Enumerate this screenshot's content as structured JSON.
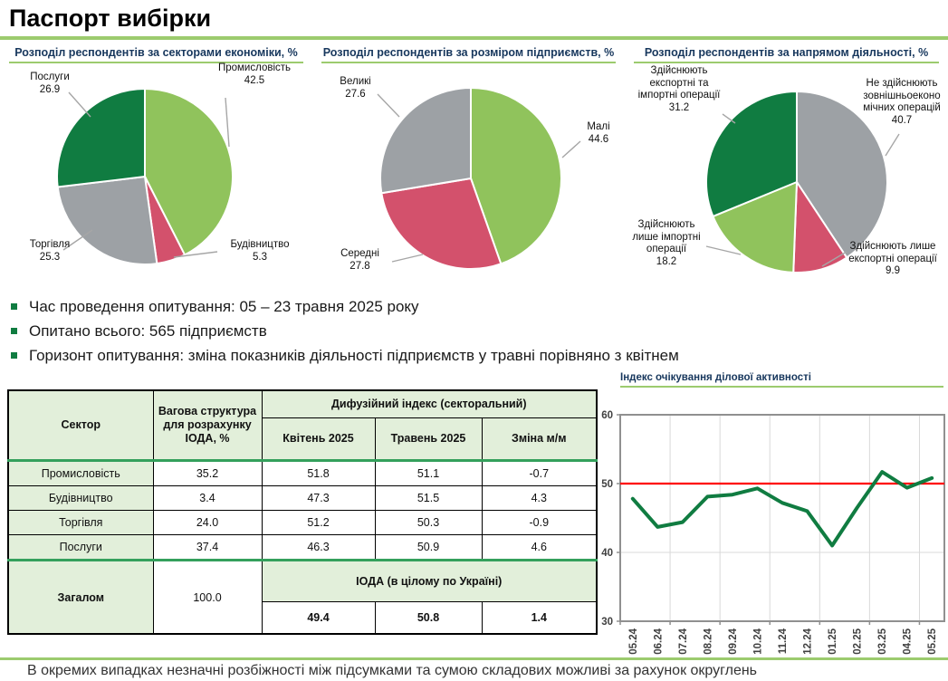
{
  "page": {
    "title": "Паспорт вибірки",
    "footer": "В окремих випадках незначні розбіжності між підсумками та сумою складових можливі за рахунок округлень"
  },
  "bullets": [
    "Час проведення опитування: 05 – 23 травня 2025 року",
    "Опитано всього: 565 підприємств",
    "Горизонт опитування: зміна показників діяльності підприємств у травні порівняно з квітнем"
  ],
  "colors": {
    "light_green": "#90c35c",
    "dark_green": "#107c41",
    "gray": "#9da1a5",
    "red": "#d3516c",
    "accent_green_line": "#34a05c",
    "page_underline": "#9ccb6e",
    "table_header_bg": "#e2efda",
    "ref_line_red": "#ff0000"
  },
  "chart_data": [
    {
      "type": "pie",
      "title": "Розподіл респондентів за секторами економіки, %",
      "labels": [
        "Промисловість",
        "Будівництво",
        "Торгівля",
        "Послуги"
      ],
      "values": [
        42.5,
        5.3,
        25.3,
        26.9
      ],
      "colors": [
        "#90c35c",
        "#d3516c",
        "#9da1a5",
        "#107c41"
      ]
    },
    {
      "type": "pie",
      "title": "Розподіл респондентів за розміром підприємств, %",
      "labels": [
        "Малі",
        "Середні",
        "Великі"
      ],
      "values": [
        44.6,
        27.8,
        27.6
      ],
      "colors": [
        "#90c35c",
        "#d3516c",
        "#9da1a5"
      ]
    },
    {
      "type": "pie",
      "title": "Розподіл респондентів за напрямом діяльності, %",
      "labels": [
        "Не здійснюють зовнішньоеконо мічних операцій",
        "Здійснюють лише експортні операції",
        "Здійснюють лише імпортні операції",
        "Здійснюють експортні та імпортні операції"
      ],
      "values": [
        40.7,
        9.9,
        18.2,
        31.2
      ],
      "colors": [
        "#9da1a5",
        "#d3516c",
        "#90c35c",
        "#107c41"
      ]
    },
    {
      "type": "line",
      "title": "Індекс очікування ділової активності",
      "x": [
        "05.24",
        "06.24",
        "07.24",
        "08.24",
        "09.24",
        "10.24",
        "11.24",
        "12.24",
        "01.25",
        "02.25",
        "03.25",
        "04.25",
        "05.25"
      ],
      "values": [
        47.8,
        43.7,
        44.4,
        48.1,
        48.4,
        49.3,
        47.2,
        46.0,
        41.0,
        46.5,
        51.7,
        49.4,
        50.8
      ],
      "ylim": [
        30,
        60
      ],
      "yticks": [
        30,
        40,
        50,
        60
      ],
      "ref_line": 50,
      "line_color": "#107c41",
      "ref_color": "#ff0000",
      "grid": true
    }
  ],
  "table": {
    "headers": {
      "sector": "Сектор",
      "weight": "Вагова структура для розрахунку ІОДА, %",
      "diffusion": "Дифузійний індекс (секторальний)",
      "april": "Квітень 2025",
      "may": "Травень 2025",
      "change": "Зміна м/м"
    },
    "rows": [
      {
        "sector": "Промисловість",
        "weight": "35.2",
        "april": "51.8",
        "may": "51.1",
        "change": "-0.7"
      },
      {
        "sector": "Будівництво",
        "weight": "3.4",
        "april": "47.3",
        "may": "51.5",
        "change": "4.3"
      },
      {
        "sector": "Торгівля",
        "weight": "24.0",
        "april": "51.2",
        "may": "50.3",
        "change": "-0.9"
      },
      {
        "sector": "Послуги",
        "weight": "37.4",
        "april": "46.3",
        "may": "50.9",
        "change": "4.6"
      }
    ],
    "total": {
      "label": "Загалом",
      "weight": "100.0",
      "ioda_label": "ІОДА (в цілому по Україні)",
      "april": "49.4",
      "may": "50.8",
      "change": "1.4"
    }
  }
}
